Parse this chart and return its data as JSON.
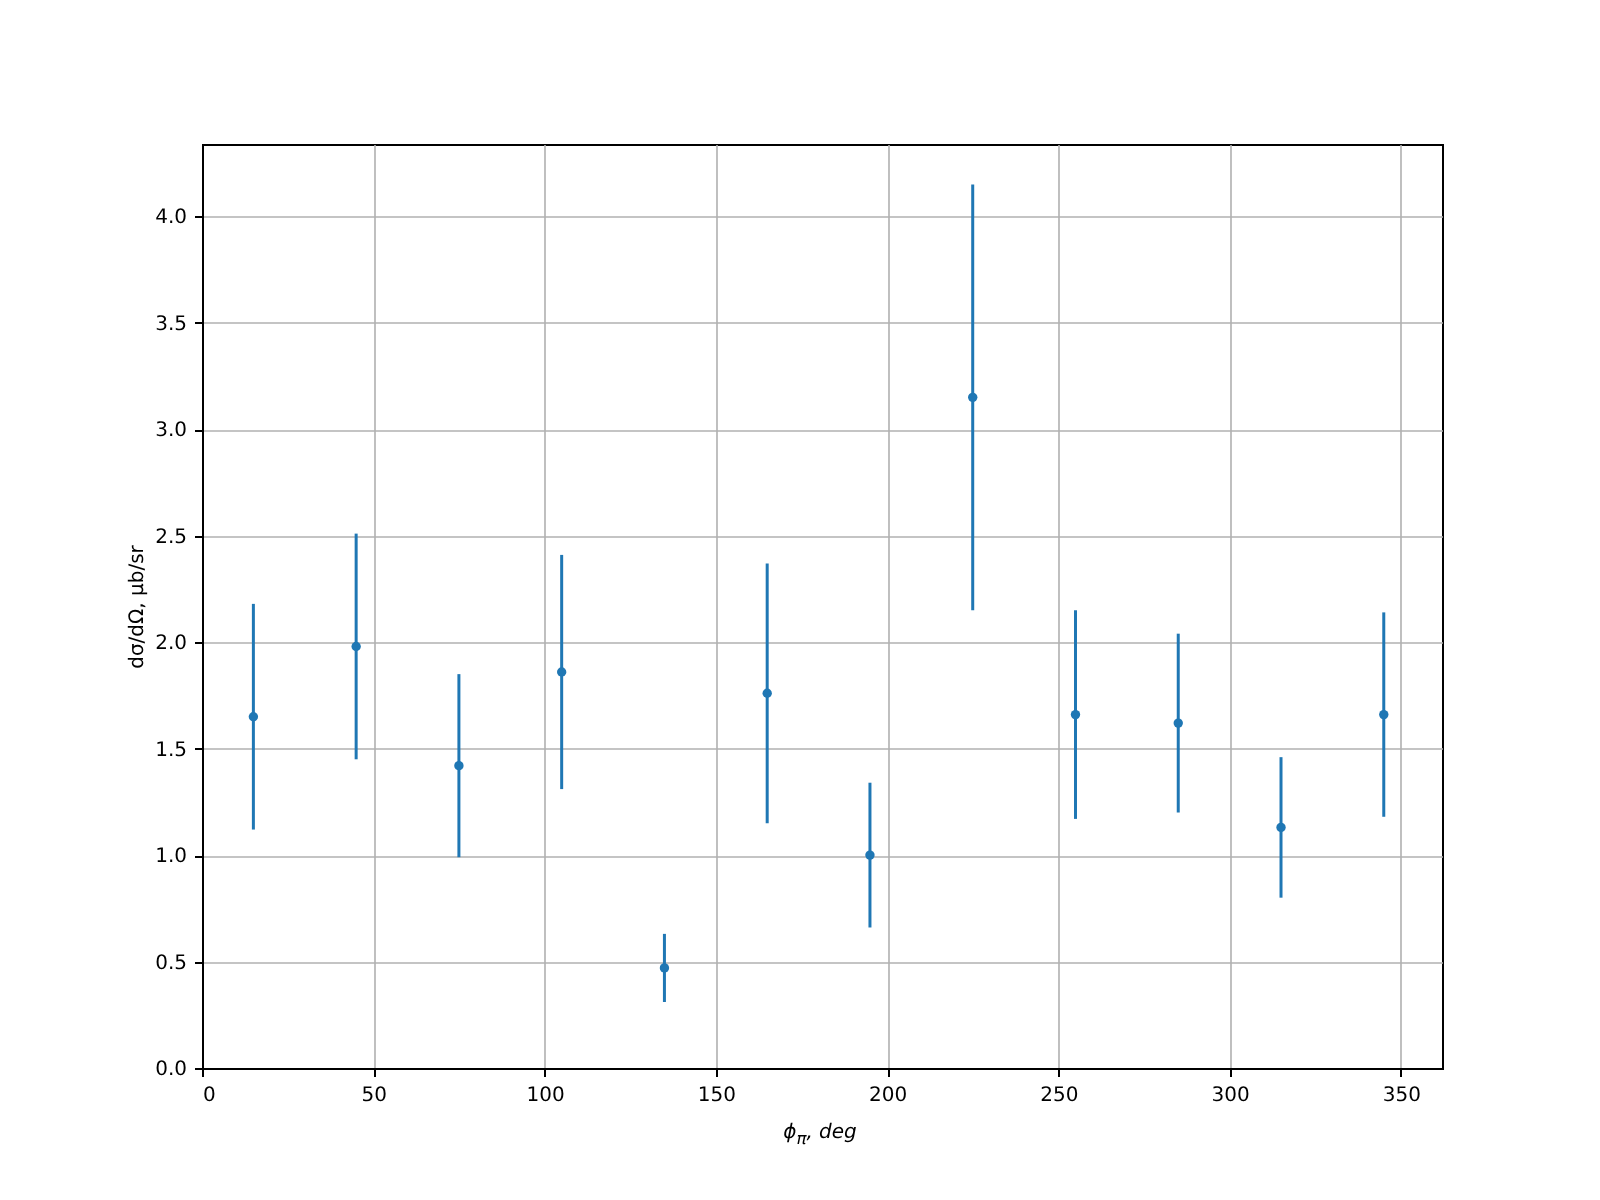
{
  "chart_data": {
    "type": "scatter",
    "xlabel": "ϕ$_{π}$, deg",
    "ylabel": "dσ/dΩ, μb/sr",
    "x": [
      15,
      45,
      75,
      105,
      135,
      165,
      195,
      225,
      255,
      285,
      315,
      345
    ],
    "series": [
      {
        "color": "#1f77b4",
        "values": [
          1.65,
          1.98,
          1.42,
          1.86,
          0.47,
          1.76,
          1.0,
          3.15,
          1.66,
          1.62,
          1.13,
          1.66
        ],
        "errors": [
          0.53,
          0.53,
          0.43,
          0.55,
          0.16,
          0.61,
          0.34,
          1.0,
          0.49,
          0.42,
          0.33,
          0.48
        ]
      }
    ],
    "xlim": [
      0,
      362
    ],
    "xticks": [
      0,
      50,
      100,
      150,
      200,
      250,
      300,
      350
    ],
    "ylim": [
      0,
      4.34
    ],
    "yticks": [
      {
        "value": 0,
        "label": "0.0"
      },
      {
        "value": 0.5,
        "label": "0.5"
      },
      {
        "value": 1,
        "label": "1.0"
      },
      {
        "value": 1.5,
        "label": "1.5"
      },
      {
        "value": 2,
        "label": "2.0"
      },
      {
        "value": 2.5,
        "label": "2.5"
      },
      {
        "value": 3,
        "label": "3.0"
      },
      {
        "value": 3.5,
        "label": "3.5"
      },
      {
        "value": 4,
        "label": "4.0"
      }
    ],
    "grid": true,
    "marker": "circle"
  }
}
